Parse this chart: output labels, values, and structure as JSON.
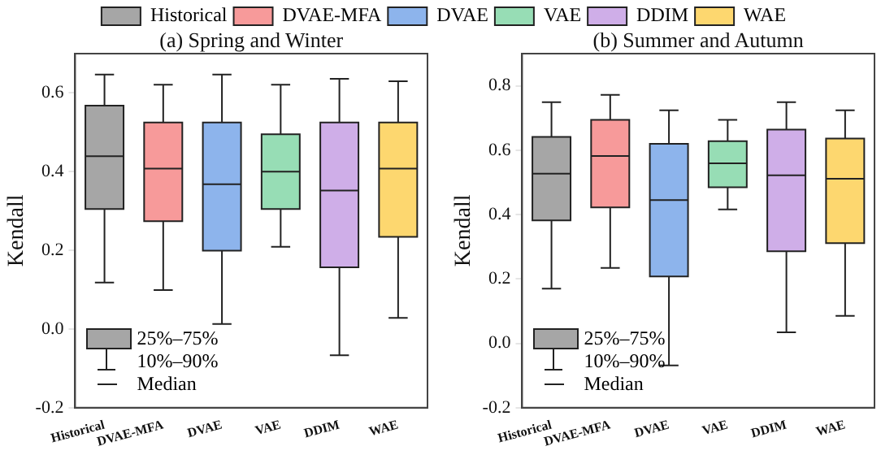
{
  "chart_data": [
    {
      "type": "box",
      "title": "(a) Spring and Winter",
      "ylabel": "Kendall",
      "categories": [
        "Historical",
        "DVAE-MFA",
        "DVAE",
        "VAE",
        "DDIM",
        "WAE"
      ],
      "series": [
        {
          "name": "Historical",
          "color": "#a6a6a6",
          "boxes": [
            {
              "low": 0.118,
              "q1": 0.305,
              "median": 0.439,
              "q3": 0.568,
              "high": 0.647
            },
            null,
            null,
            null,
            null,
            null
          ]
        },
        {
          "name": "DVAE-MFA",
          "color": "#f79a9a",
          "boxes": [
            null,
            {
              "low": 0.099,
              "q1": 0.274,
              "median": 0.408,
              "q3": 0.525,
              "high": 0.621
            },
            null,
            null,
            null,
            null
          ]
        },
        {
          "name": "DVAE",
          "color": "#8db4ec",
          "boxes": [
            null,
            null,
            {
              "low": 0.013,
              "q1": 0.199,
              "median": 0.368,
              "q3": 0.525,
              "high": 0.647
            },
            null,
            null,
            null
          ]
        },
        {
          "name": "VAE",
          "color": "#97ddb5",
          "boxes": [
            null,
            null,
            null,
            {
              "low": 0.209,
              "q1": 0.305,
              "median": 0.4,
              "q3": 0.495,
              "high": 0.621
            },
            null,
            null
          ]
        },
        {
          "name": "DDIM",
          "color": "#cfaee8",
          "boxes": [
            null,
            null,
            null,
            null,
            {
              "low": -0.067,
              "q1": 0.157,
              "median": 0.352,
              "q3": 0.525,
              "high": 0.636
            },
            null
          ]
        },
        {
          "name": "WAE",
          "color": "#fdd76f",
          "boxes": [
            null,
            null,
            null,
            null,
            null,
            {
              "low": 0.028,
              "q1": 0.234,
              "median": 0.408,
              "q3": 0.525,
              "high": 0.63
            }
          ]
        }
      ],
      "ylim": [
        -0.2,
        0.7
      ],
      "yticks": [
        -0.2,
        {
          "value": 0,
          "label": "0.0"
        },
        0.2,
        0.4,
        0.6
      ],
      "annotations": [
        "25%–75%",
        "10%–90%",
        "Median"
      ],
      "grid": false,
      "legend": "top"
    },
    {
      "type": "box",
      "title": "(b) Summer and Autumn",
      "ylabel": "Kendall",
      "categories": [
        "Historical",
        "DVAE-MFA",
        "DVAE",
        "VAE",
        "DDIM",
        "WAE"
      ],
      "series": [
        {
          "color": "#a6a6a6",
          "boxes": [
            {
              "low": 0.17,
              "q1": 0.382,
              "median": 0.527,
              "q3": 0.641,
              "high": 0.749
            },
            null,
            null,
            null,
            null,
            null
          ]
        },
        {
          "color": "#f79a9a",
          "boxes": [
            null,
            {
              "low": 0.234,
              "q1": 0.422,
              "median": 0.582,
              "q3": 0.694,
              "high": 0.772
            },
            null,
            null,
            null,
            null
          ]
        },
        {
          "color": "#8db4ec",
          "boxes": [
            null,
            null,
            {
              "low": -0.069,
              "q1": 0.208,
              "median": 0.445,
              "q3": 0.62,
              "high": 0.724
            },
            null,
            null,
            null
          ]
        },
        {
          "color": "#97ddb5",
          "boxes": [
            null,
            null,
            null,
            {
              "low": 0.416,
              "q1": 0.485,
              "median": 0.559,
              "q3": 0.628,
              "high": 0.694
            },
            null,
            null
          ]
        },
        {
          "color": "#cfaee8",
          "boxes": [
            null,
            null,
            null,
            null,
            {
              "low": 0.034,
              "q1": 0.286,
              "median": 0.522,
              "q3": 0.664,
              "high": 0.749
            },
            null
          ]
        },
        {
          "color": "#fdd76f",
          "boxes": [
            null,
            null,
            null,
            null,
            null,
            {
              "low": 0.085,
              "q1": 0.311,
              "median": 0.511,
              "q3": 0.636,
              "high": 0.724
            }
          ]
        }
      ],
      "ylim": [
        -0.2,
        0.9
      ],
      "yticks": [
        -0.2,
        {
          "value": 0,
          "label": "0.0"
        },
        0.2,
        0.4,
        0.6,
        0.8
      ],
      "annotations": [
        "25%–75%",
        "10%–90%",
        "Median"
      ],
      "grid": false
    }
  ]
}
